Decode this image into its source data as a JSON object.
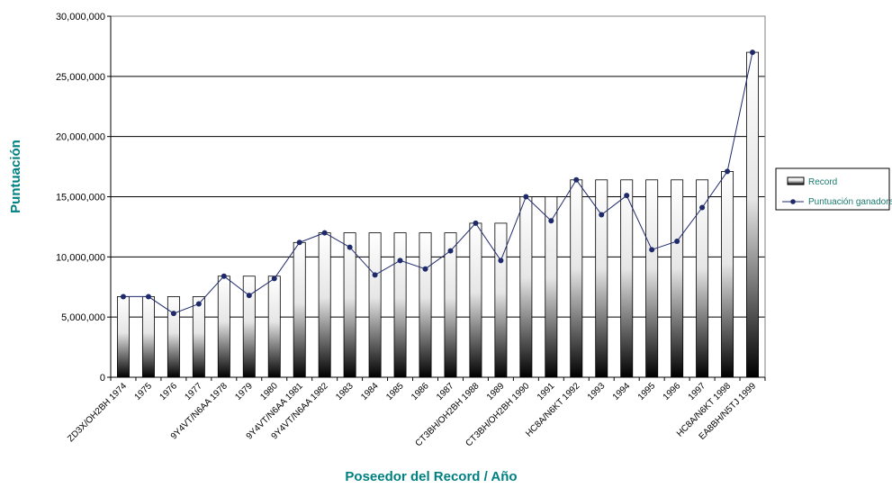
{
  "colors": {
    "title_text": "#008080",
    "line": "#1f2a6b",
    "bar_light": "#ffffff",
    "bar_dark": "#000000",
    "grid": "#000000",
    "legend_text": "#1a7a6e"
  },
  "chart_data": {
    "type": "bar",
    "title": "",
    "xlabel": "Poseedor del Record / Año",
    "ylabel": "Puntuación",
    "ylim": [
      0,
      30000000
    ],
    "yticks": [
      "0",
      "5,000,000",
      "10,000,000",
      "15,000,000",
      "20,000,000",
      "25,000,000",
      "30,000,000"
    ],
    "grid": true,
    "legend_position": "right",
    "categories": [
      "ZD3X/OH2BH 1974",
      "1975",
      "1976",
      "1977",
      "9Y4VT/N6AA 1978",
      "1979",
      "1980",
      "9Y4VT/N6AA 1981",
      "9Y4VT/N6AA 1982",
      "1983",
      "1984",
      "1985",
      "1986",
      "1987",
      "CT3BH/OH2BH 1988",
      "1989",
      "CT3BH/OH2BH 1990",
      "1991",
      "HC8A/N6KT 1992",
      "1993",
      "1994",
      "1995",
      "1996",
      "1997",
      "HC8A/N6KT 1998",
      "EA8BH/N5TJ 1999"
    ],
    "series": [
      {
        "name": "Record",
        "kind": "bar",
        "values": [
          6700000,
          6700000,
          6700000,
          6700000,
          8400000,
          8400000,
          8400000,
          11200000,
          12000000,
          12000000,
          12000000,
          12000000,
          12000000,
          12000000,
          12800000,
          12800000,
          15000000,
          15000000,
          16400000,
          16400000,
          16400000,
          16400000,
          16400000,
          16400000,
          17100000,
          27000000
        ]
      },
      {
        "name": "Puntuación ganadora",
        "kind": "line",
        "values": [
          6700000,
          6700000,
          5300000,
          6100000,
          8400000,
          6800000,
          8200000,
          11200000,
          12000000,
          10800000,
          8500000,
          9700000,
          9000000,
          10500000,
          12800000,
          9700000,
          15000000,
          13000000,
          16400000,
          13500000,
          15100000,
          10600000,
          11300000,
          14100000,
          17100000,
          27000000
        ]
      }
    ]
  }
}
